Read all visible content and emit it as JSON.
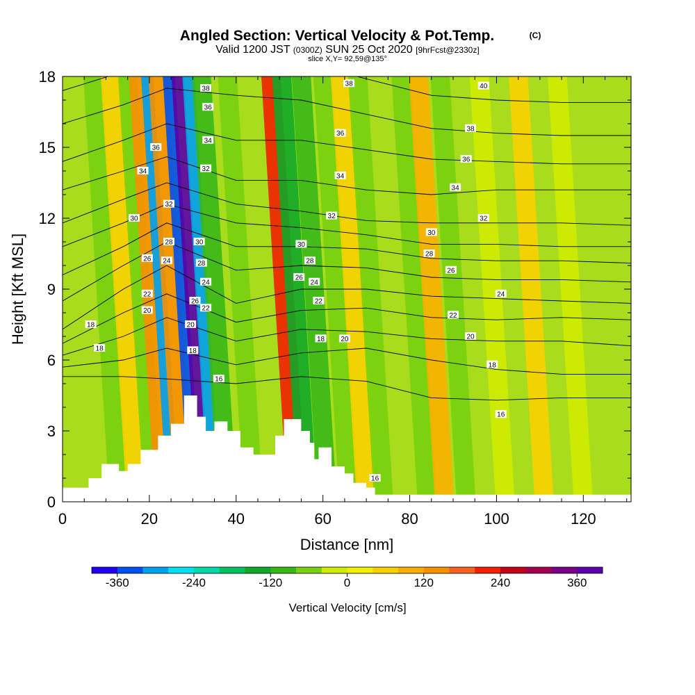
{
  "header": {
    "title": "Angled Section: Vertical Velocity & Pot.Temp.",
    "title_mark": "(C)",
    "valid_prefix": "Valid 1200 JST",
    "valid_utc": "(0300Z)",
    "valid_date": "SUN 25 Oct 2020",
    "forecast": "[9hrFcst@2330z]",
    "slice": "slice X,Y= 92,59@135°"
  },
  "chart_data": {
    "type": "heatmap",
    "title": "Angled Section: Vertical Velocity & Pot.Temp.",
    "xlabel": "Distance [nm]",
    "ylabel": "Height [Kft MSL]",
    "xlim": [
      0,
      131
    ],
    "ylim": [
      0,
      18
    ],
    "x_ticks": [
      0,
      20,
      40,
      60,
      80,
      100,
      120
    ],
    "y_ticks": [
      0,
      3,
      6,
      9,
      12,
      15,
      18
    ],
    "colorbar": {
      "label": "Vertical Velocity [cm/s]",
      "tick_labels": [
        "-360",
        "-240",
        "-120",
        "0",
        "120",
        "240",
        "360"
      ],
      "tick_values": [
        -360,
        -240,
        -120,
        0,
        120,
        240,
        360
      ],
      "range": [
        -400,
        400
      ],
      "colors": [
        "#1e00f0",
        "#0050f0",
        "#00a0f0",
        "#00e0f0",
        "#00d8a8",
        "#00c060",
        "#10a828",
        "#38b818",
        "#78d010",
        "#d0ec00",
        "#f0f000",
        "#f8d000",
        "#f8b000",
        "#f89000",
        "#f86020",
        "#f02000",
        "#c00018",
        "#a00050",
        "#780088",
        "#5a00a8"
      ]
    },
    "velocity_bands": [
      {
        "x": 13,
        "v": -80
      },
      {
        "x": 17,
        "v": 60
      },
      {
        "x": 21,
        "v": -60
      },
      {
        "x": 23.5,
        "v": 120
      },
      {
        "x": 25.5,
        "v": -320
      },
      {
        "x": 28,
        "v": 140
      },
      {
        "x": 30.5,
        "v": -360
      },
      {
        "x": 32.5,
        "v": 400
      },
      {
        "x": 35,
        "v": -300
      },
      {
        "x": 38,
        "v": -90
      },
      {
        "x": 44,
        "v": -60
      },
      {
        "x": 54,
        "v": 200
      },
      {
        "x": 56.5,
        "v": -160
      },
      {
        "x": 61,
        "v": -110
      },
      {
        "x": 66,
        "v": -60
      },
      {
        "x": 70,
        "v": 60
      },
      {
        "x": 74,
        "v": -60
      },
      {
        "x": 84,
        "v": -70
      },
      {
        "x": 88,
        "v": 90
      },
      {
        "x": 93,
        "v": -50
      },
      {
        "x": 102,
        "v": -40
      },
      {
        "x": 111,
        "v": 40
      },
      {
        "x": 120,
        "v": -30
      }
    ],
    "theta_contours": [
      {
        "level": 16,
        "heights": [
          5.3,
          5.3,
          5.2,
          5.0,
          5.3,
          5.1,
          4.4,
          4.3,
          4.4,
          4.4
        ]
      },
      {
        "level": 18,
        "heights": [
          5.7,
          6.0,
          6.5,
          5.8,
          6.3,
          6.5,
          6.0,
          5.6,
          5.4,
          5.4
        ]
      },
      {
        "level": 20,
        "heights": [
          6.2,
          7.0,
          7.8,
          6.8,
          7.3,
          7.2,
          6.9,
          6.8,
          6.8,
          6.6
        ]
      },
      {
        "level": 22,
        "heights": [
          6.7,
          8.0,
          8.8,
          7.6,
          8.1,
          8.2,
          7.8,
          7.7,
          7.8,
          7.7
        ]
      },
      {
        "level": 24,
        "heights": [
          7.3,
          9.0,
          10.0,
          8.4,
          9.0,
          9.0,
          8.7,
          8.6,
          8.5,
          8.4
        ]
      },
      {
        "level": 26,
        "heights": [
          8.5,
          10.0,
          11.0,
          9.8,
          10.0,
          9.9,
          9.5,
          9.4,
          9.4,
          9.3
        ]
      },
      {
        "level": 28,
        "heights": [
          9.6,
          10.8,
          11.8,
          10.8,
          10.8,
          10.7,
          10.3,
          10.2,
          10.2,
          10.1
        ]
      },
      {
        "level": 30,
        "heights": [
          10.8,
          11.8,
          12.6,
          11.8,
          11.6,
          11.3,
          10.9,
          10.9,
          10.8,
          10.8
        ]
      },
      {
        "level": 32,
        "heights": [
          11.8,
          12.8,
          13.5,
          12.6,
          12.3,
          11.9,
          11.8,
          11.8,
          11.8,
          11.7
        ]
      },
      {
        "level": 34,
        "heights": [
          13.2,
          14.0,
          14.6,
          13.6,
          13.6,
          13.2,
          13.0,
          13.2,
          13.2,
          13.2
        ]
      },
      {
        "level": 36,
        "heights": [
          14.4,
          15.3,
          16.0,
          15.3,
          15.3,
          14.9,
          14.5,
          14.4,
          14.3,
          14.3
        ]
      },
      {
        "level": 38,
        "heights": [
          16.0,
          16.8,
          17.5,
          17.2,
          17.0,
          16.4,
          15.8,
          15.6,
          15.5,
          15.5
        ]
      },
      {
        "level": 40,
        "heights": [
          17.4,
          18.2,
          19.0,
          18.8,
          18.6,
          17.9,
          17.2,
          17.0,
          16.9,
          16.9
        ]
      }
    ],
    "contour_x": [
      0,
      14,
      24,
      40,
      55,
      70,
      85,
      100,
      115,
      131
    ],
    "terrain": [
      [
        0,
        0.6
      ],
      [
        6,
        1.0
      ],
      [
        9,
        1.6
      ],
      [
        13,
        1.3
      ],
      [
        15,
        1.6
      ],
      [
        18,
        2.2
      ],
      [
        22,
        2.8
      ],
      [
        25,
        3.3
      ],
      [
        28,
        4.5
      ],
      [
        30,
        4.5
      ],
      [
        31,
        3.6
      ],
      [
        33,
        3.0
      ],
      [
        35,
        3.4
      ],
      [
        38,
        3.0
      ],
      [
        41,
        2.3
      ],
      [
        44,
        2.0
      ],
      [
        46,
        2.0
      ],
      [
        49,
        2.8
      ],
      [
        51,
        3.5
      ],
      [
        53,
        3.5
      ],
      [
        55,
        3.0
      ],
      [
        57,
        2.5
      ],
      [
        58,
        1.8
      ],
      [
        59,
        2.3
      ],
      [
        61,
        2.3
      ],
      [
        62,
        1.5
      ],
      [
        65,
        1.2
      ],
      [
        67,
        0.8
      ],
      [
        70,
        0.6
      ],
      [
        72,
        0.3
      ],
      [
        131,
        0.3
      ]
    ],
    "contour_labels": [
      {
        "text": "38",
        "x": 33,
        "y": 17.5
      },
      {
        "text": "36",
        "x": 33.5,
        "y": 16.7
      },
      {
        "text": "34",
        "x": 33.5,
        "y": 15.3
      },
      {
        "text": "32",
        "x": 33,
        "y": 14.1
      },
      {
        "text": "36",
        "x": 21.5,
        "y": 15.0
      },
      {
        "text": "34",
        "x": 18.5,
        "y": 14.0
      },
      {
        "text": "32",
        "x": 24.5,
        "y": 12.6
      },
      {
        "text": "30",
        "x": 16.5,
        "y": 12.0
      },
      {
        "text": "28",
        "x": 24.5,
        "y": 11.0
      },
      {
        "text": "30",
        "x": 31.5,
        "y": 11.0
      },
      {
        "text": "26",
        "x": 19.5,
        "y": 10.3
      },
      {
        "text": "24",
        "x": 24.0,
        "y": 10.2
      },
      {
        "text": "28",
        "x": 32.0,
        "y": 10.1
      },
      {
        "text": "24",
        "x": 33.0,
        "y": 9.3
      },
      {
        "text": "22",
        "x": 19.5,
        "y": 8.8
      },
      {
        "text": "26",
        "x": 30.5,
        "y": 8.5
      },
      {
        "text": "22",
        "x": 33.0,
        "y": 8.2
      },
      {
        "text": "20",
        "x": 19.5,
        "y": 8.1
      },
      {
        "text": "20",
        "x": 29.5,
        "y": 7.5
      },
      {
        "text": "18",
        "x": 6.5,
        "y": 7.5
      },
      {
        "text": "18",
        "x": 8.5,
        "y": 6.5
      },
      {
        "text": "18",
        "x": 30.0,
        "y": 6.4
      },
      {
        "text": "16",
        "x": 36.0,
        "y": 5.2
      },
      {
        "text": "38",
        "x": 66.0,
        "y": 17.7
      },
      {
        "text": "40",
        "x": 97.0,
        "y": 17.6
      },
      {
        "text": "36",
        "x": 64.0,
        "y": 15.6
      },
      {
        "text": "38",
        "x": 94.0,
        "y": 15.8
      },
      {
        "text": "34",
        "x": 64.0,
        "y": 13.8
      },
      {
        "text": "36",
        "x": 93.0,
        "y": 14.5
      },
      {
        "text": "34",
        "x": 90.5,
        "y": 13.3
      },
      {
        "text": "32",
        "x": 62.0,
        "y": 12.1
      },
      {
        "text": "32",
        "x": 97.0,
        "y": 12.0
      },
      {
        "text": "30",
        "x": 85.0,
        "y": 11.4
      },
      {
        "text": "30",
        "x": 55.0,
        "y": 10.9
      },
      {
        "text": "28",
        "x": 84.5,
        "y": 10.5
      },
      {
        "text": "28",
        "x": 57.0,
        "y": 10.2
      },
      {
        "text": "26",
        "x": 89.5,
        "y": 9.8
      },
      {
        "text": "26",
        "x": 54.5,
        "y": 9.5
      },
      {
        "text": "24",
        "x": 58.0,
        "y": 9.3
      },
      {
        "text": "24",
        "x": 101.0,
        "y": 8.8
      },
      {
        "text": "22",
        "x": 59.0,
        "y": 8.5
      },
      {
        "text": "22",
        "x": 90.0,
        "y": 7.9
      },
      {
        "text": "18",
        "x": 59.5,
        "y": 6.9
      },
      {
        "text": "20",
        "x": 65.0,
        "y": 6.9
      },
      {
        "text": "20",
        "x": 94.0,
        "y": 7.0
      },
      {
        "text": "18",
        "x": 99.0,
        "y": 5.8
      },
      {
        "text": "16",
        "x": 101.0,
        "y": 3.7
      },
      {
        "text": "16",
        "x": 72.0,
        "y": 1.0
      }
    ]
  }
}
